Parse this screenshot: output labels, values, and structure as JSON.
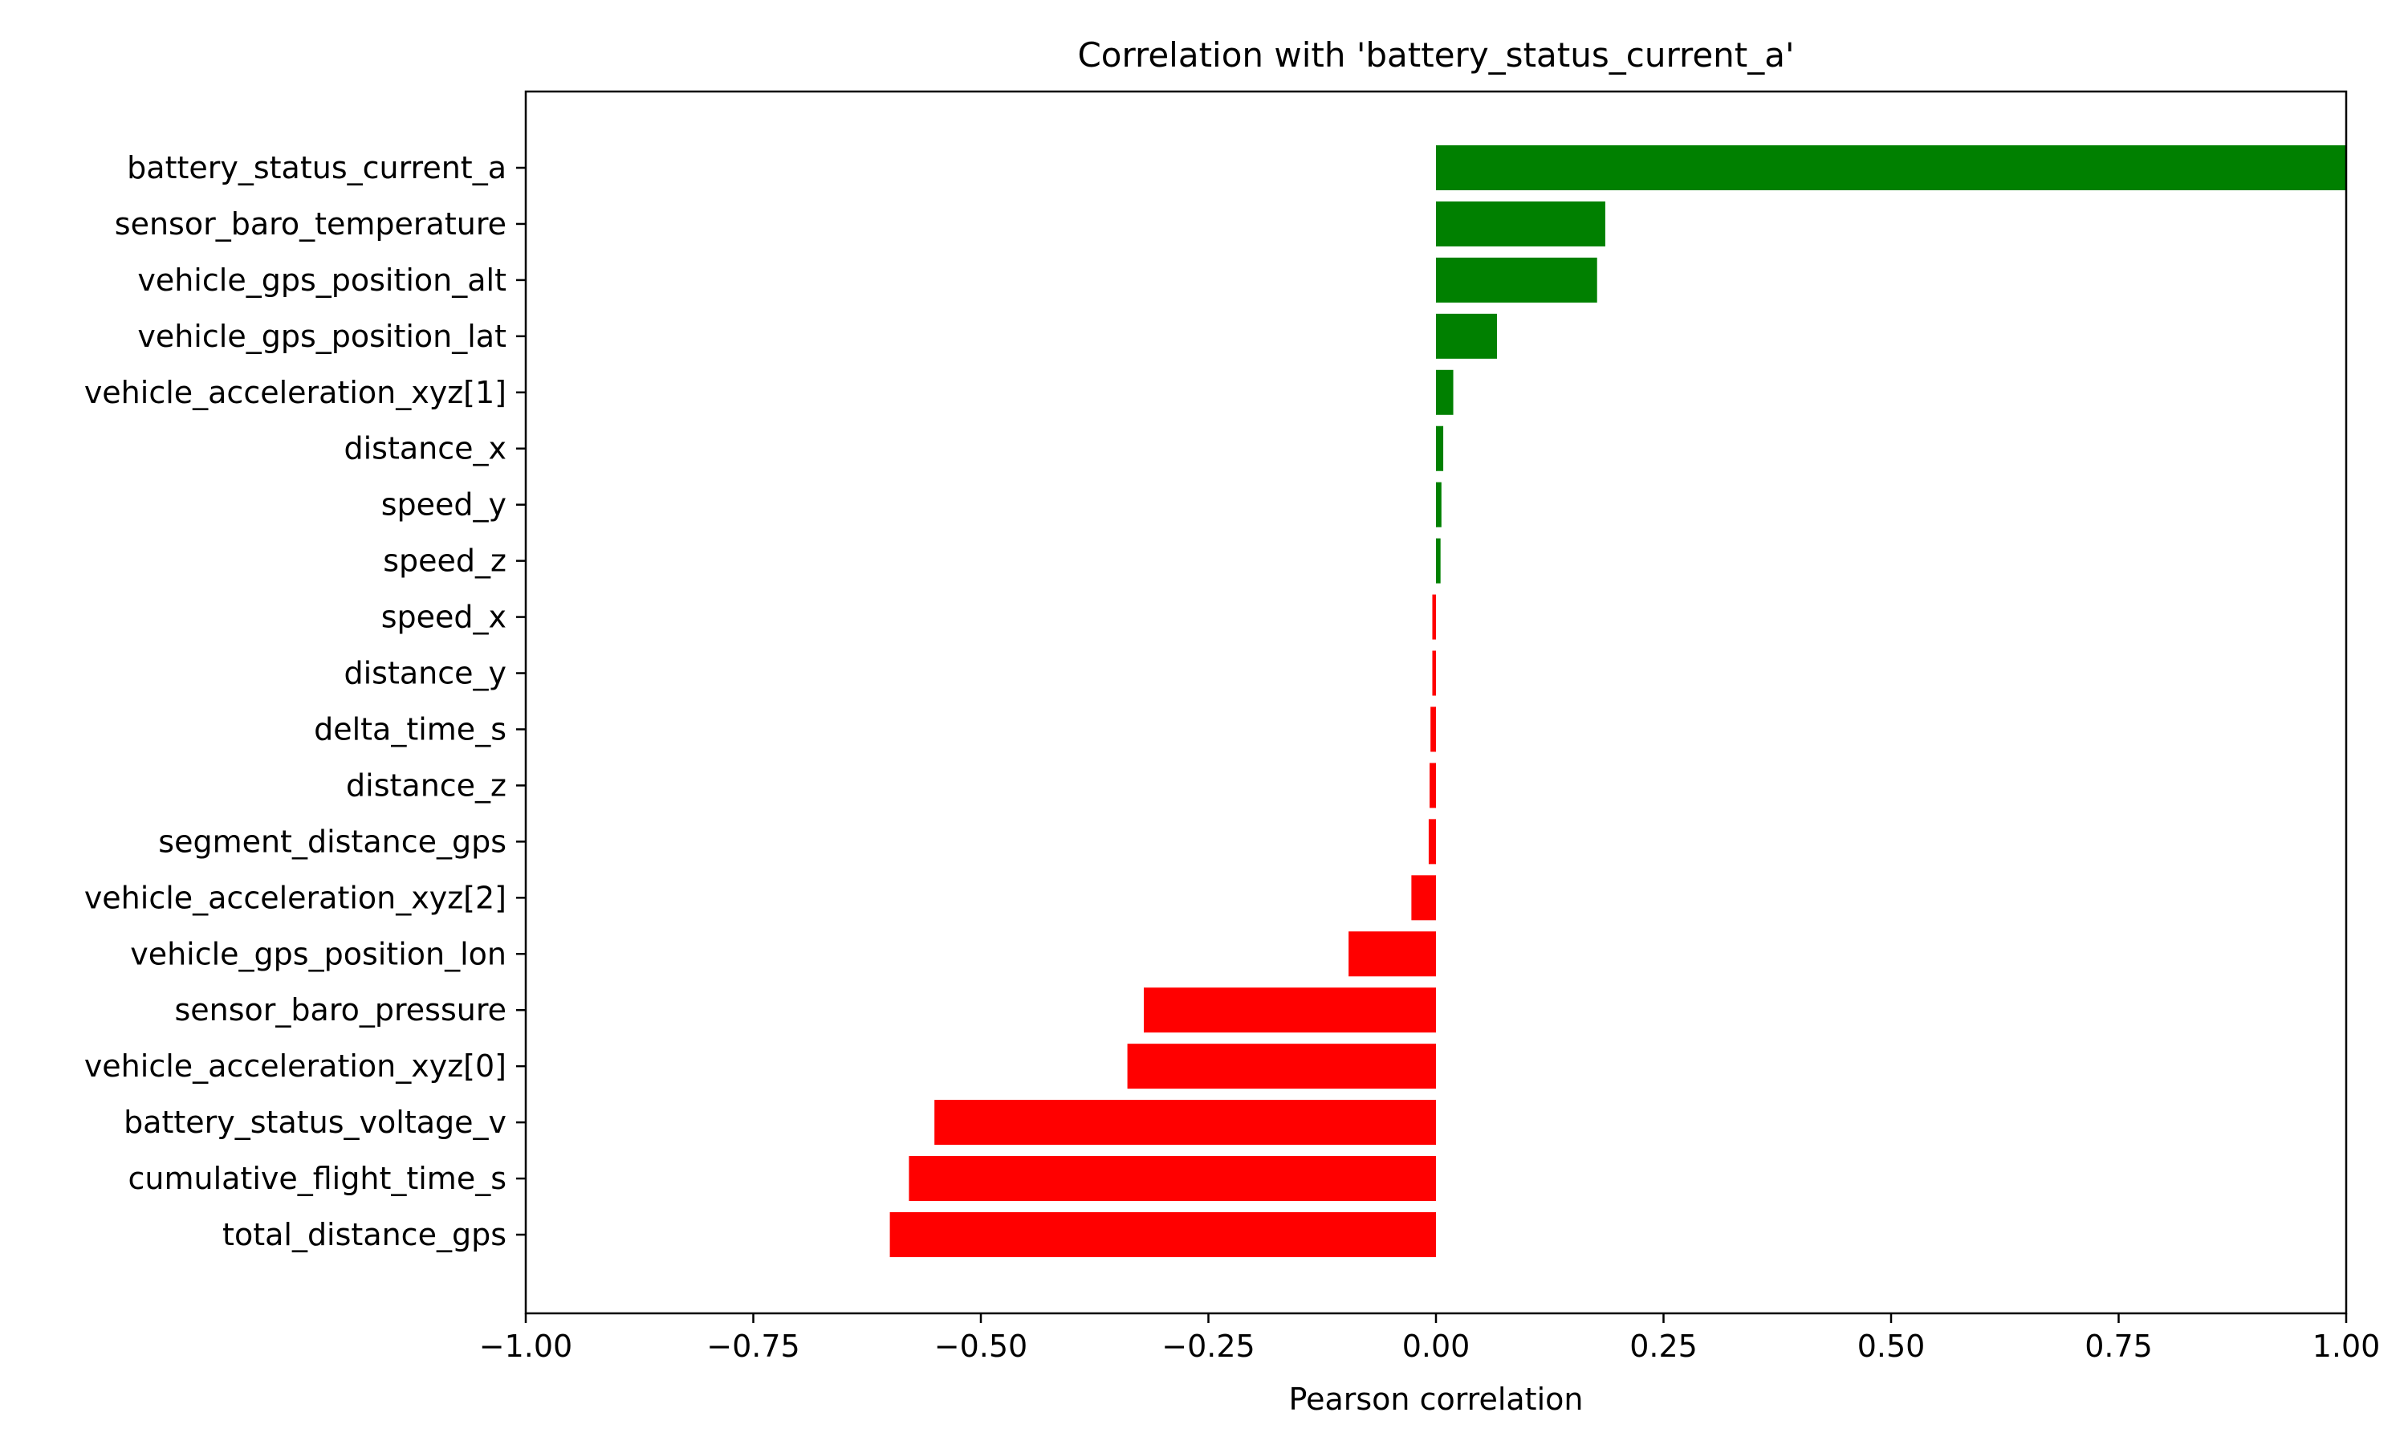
{
  "chart_data": {
    "type": "bar",
    "orientation": "horizontal",
    "title": "Correlation with 'battery_status_current_a'",
    "xlabel": "Pearson correlation",
    "ylabel": "",
    "xlim": [
      -1.0,
      1.0
    ],
    "xticks": [
      "−1.00",
      "−0.75",
      "−0.50",
      "−0.25",
      "0.00",
      "0.25",
      "0.50",
      "0.75",
      "1.00"
    ],
    "xtick_values": [
      -1.0,
      -0.75,
      -0.5,
      -0.25,
      0.0,
      0.25,
      0.5,
      0.75,
      1.0
    ],
    "grid": false,
    "categories": [
      "battery_status_current_a",
      "sensor_baro_temperature",
      "vehicle_gps_position_alt",
      "vehicle_gps_position_lat",
      "vehicle_acceleration_xyz[1]",
      "distance_x",
      "speed_y",
      "speed_z",
      "speed_x",
      "distance_y",
      "delta_time_s",
      "distance_z",
      "segment_distance_gps",
      "vehicle_acceleration_xyz[2]",
      "vehicle_gps_position_lon",
      "sensor_baro_pressure",
      "vehicle_acceleration_xyz[0]",
      "battery_status_voltage_v",
      "cumulative_flight_time_s",
      "total_distance_gps"
    ],
    "values": [
      1.0,
      0.186,
      0.177,
      0.067,
      0.019,
      0.008,
      0.006,
      0.005,
      -0.004,
      -0.004,
      -0.006,
      -0.007,
      -0.008,
      -0.027,
      -0.096,
      -0.321,
      -0.339,
      -0.551,
      -0.579,
      -0.6
    ],
    "positive_color": "#008000",
    "negative_color": "#ff0000"
  }
}
